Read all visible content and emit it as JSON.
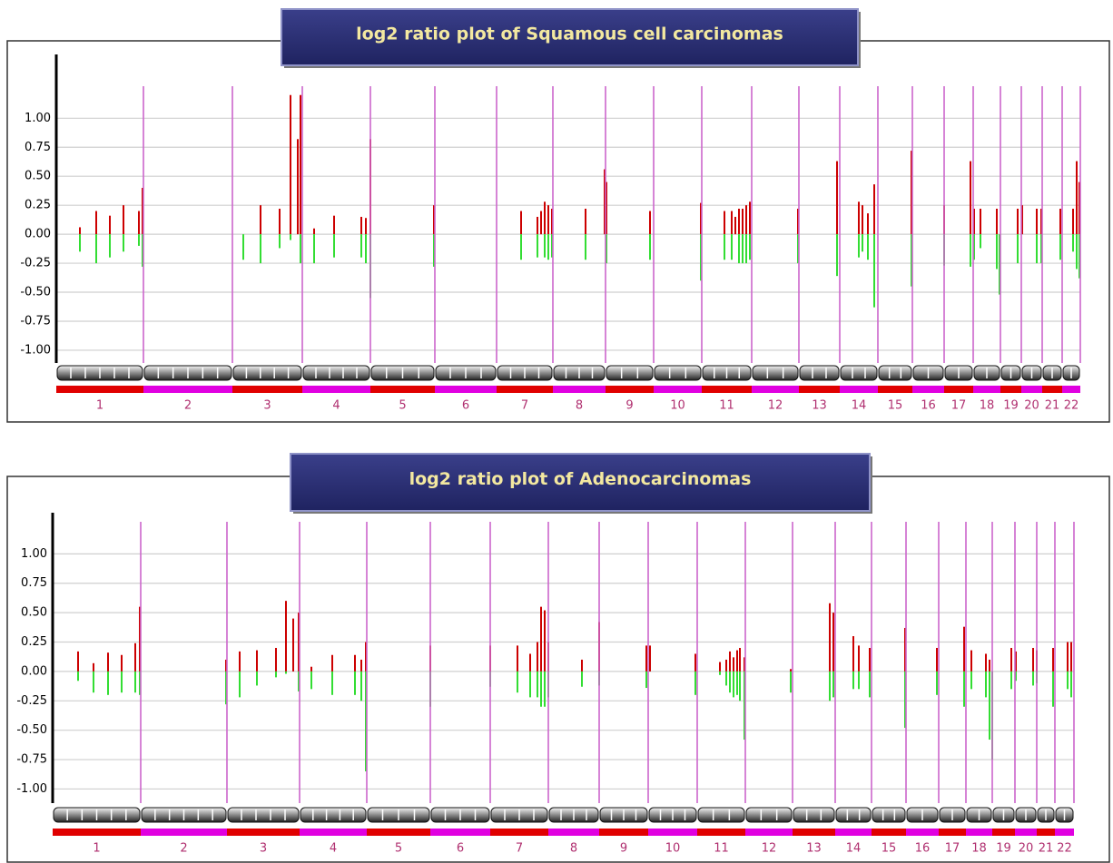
{
  "chart_data": [
    {
      "type": "bar",
      "title": "log2 ratio plot of Squamous cell carcinomas",
      "categories": [
        "1",
        "2",
        "3",
        "4",
        "5",
        "6",
        "7",
        "8",
        "9",
        "10",
        "11",
        "12",
        "13",
        "14",
        "15",
        "16",
        "17",
        "18",
        "19",
        "20",
        "21",
        "22"
      ],
      "chromosome_bounds": [
        62,
        158,
        256,
        333,
        408,
        479,
        547,
        609,
        667,
        720,
        773,
        828,
        880,
        925,
        967,
        1005,
        1040,
        1072,
        1102,
        1125,
        1148,
        1170,
        1190
      ],
      "xlim": [
        62,
        1190
      ],
      "ylim": [
        -1.11,
        1.55
      ],
      "yticks": [
        {
          "value": 1,
          "label": "1.00"
        },
        {
          "value": 0.75,
          "label": "0.75"
        },
        {
          "value": 0.5,
          "label": "0.50"
        },
        {
          "value": 0.25,
          "label": "0.25"
        },
        {
          "value": 0,
          "label": "0.00"
        },
        {
          "value": -0.25,
          "label": "-0.25"
        },
        {
          "value": -0.5,
          "label": "-0.50"
        },
        {
          "value": -0.75,
          "label": "-0.75"
        },
        {
          "value": -1,
          "label": "-1.00"
        }
      ],
      "grid": true,
      "boundary_color": "#cc66cc",
      "band_colors": [
        "#e00000",
        "#e000e0"
      ],
      "series": [
        {
          "color": "#cc0000",
          "x": [
            88,
            106,
            121,
            136,
            153,
            157,
            287,
            308,
            320,
            328,
            331,
            346,
            368,
            398,
            403,
            408,
            478,
            574,
            592,
            596,
            600,
            604,
            608,
            645,
            666,
            668,
            716,
            772,
            798,
            806,
            810,
            814,
            818,
            822,
            826,
            879,
            922,
            946,
            950,
            956,
            963,
            1004,
            1040,
            1069,
            1073,
            1080,
            1098,
            1121,
            1126,
            1142,
            1147,
            1168,
            1182,
            1186,
            1189
          ],
          "values": [
            0.06,
            0.2,
            0.16,
            0.25,
            0.2,
            0.4,
            0.25,
            0.22,
            1.2,
            0.82,
            1.2,
            0.05,
            0.16,
            0.15,
            0.14,
            0.82,
            0.25,
            0.2,
            0.15,
            0.2,
            0.28,
            0.25,
            0.22,
            0.22,
            0.56,
            0.45,
            0.2,
            0.27,
            0.2,
            0.2,
            0.15,
            0.22,
            0.22,
            0.25,
            0.28,
            0.22,
            0.63,
            0.28,
            0.25,
            0.18,
            0.43,
            0.72,
            0.25,
            0.63,
            0.22,
            0.22,
            0.22,
            0.22,
            0.25,
            0.22,
            0.22,
            0.22,
            0.22,
            0.63,
            0.45
          ]
        },
        {
          "color": "#33dd33",
          "x": [
            88,
            106,
            121,
            136,
            153,
            157,
            268,
            287,
            308,
            320,
            331,
            346,
            368,
            398,
            403,
            408,
            478,
            574,
            592,
            600,
            604,
            608,
            645,
            668,
            716,
            772,
            798,
            806,
            814,
            818,
            822,
            826,
            879,
            922,
            946,
            950,
            956,
            963,
            1004,
            1040,
            1069,
            1073,
            1080,
            1098,
            1101,
            1121,
            1142,
            1147,
            1168,
            1182,
            1186,
            1189
          ],
          "values": [
            -0.15,
            -0.25,
            -0.2,
            -0.15,
            -0.1,
            -0.28,
            -0.22,
            -0.25,
            -0.12,
            -0.05,
            -0.25,
            -0.25,
            -0.2,
            -0.2,
            -0.25,
            -0.55,
            -0.28,
            -0.22,
            -0.2,
            -0.2,
            -0.22,
            -0.2,
            -0.22,
            -0.25,
            -0.22,
            -0.4,
            -0.22,
            -0.22,
            -0.25,
            -0.25,
            -0.25,
            -0.22,
            -0.25,
            -0.36,
            -0.2,
            -0.15,
            -0.22,
            -0.63,
            -0.45,
            -0.27,
            -0.28,
            -0.22,
            -0.12,
            -0.3,
            -0.52,
            -0.25,
            -0.25,
            -0.25,
            -0.22,
            -0.15,
            -0.3,
            -0.38
          ]
        }
      ]
    },
    {
      "type": "bar",
      "title": "log2 ratio plot of Adenocarcinomas",
      "categories": [
        "1",
        "2",
        "3",
        "4",
        "5",
        "6",
        "7",
        "8",
        "9",
        "10",
        "11",
        "12",
        "13",
        "14",
        "15",
        "16",
        "17",
        "18",
        "19",
        "20",
        "21",
        "22"
      ],
      "chromosome_bounds": [
        58,
        155,
        250,
        330,
        404,
        474,
        540,
        604,
        660,
        714,
        768,
        821,
        873,
        920,
        960,
        998,
        1034,
        1064,
        1093,
        1118,
        1142,
        1162,
        1183
      ],
      "xlim": [
        58,
        1183
      ],
      "ylim": [
        -1.12,
        1.35
      ],
      "yticks": [
        {
          "value": 1,
          "label": "1.00"
        },
        {
          "value": 0.75,
          "label": "0.75"
        },
        {
          "value": 0.5,
          "label": "0.50"
        },
        {
          "value": 0.25,
          "label": "0.25"
        },
        {
          "value": 0,
          "label": "0.00"
        },
        {
          "value": -0.25,
          "label": "-0.25"
        },
        {
          "value": -0.5,
          "label": "-0.50"
        },
        {
          "value": -0.75,
          "label": "-0.75"
        },
        {
          "value": -1,
          "label": "-1.00"
        }
      ],
      "grid": true,
      "boundary_color": "#cc66cc",
      "band_colors": [
        "#e00000",
        "#e000e0"
      ],
      "series": [
        {
          "color": "#cc0000",
          "x": [
            86,
            103,
            119,
            134,
            149,
            154,
            249,
            264,
            283,
            304,
            315,
            323,
            329,
            343,
            366,
            391,
            398,
            403,
            474,
            540,
            570,
            584,
            592,
            596,
            600,
            604,
            641,
            660,
            712,
            716,
            766,
            793,
            800,
            804,
            808,
            812,
            815,
            820,
            871,
            914,
            918,
            940,
            946,
            958,
            997,
            1032,
            1062,
            1070,
            1086,
            1090,
            1114,
            1119,
            1138,
            1142,
            1160,
            1176,
            1180
          ],
          "values": [
            0.17,
            0.07,
            0.16,
            0.14,
            0.24,
            0.55,
            0.1,
            0.17,
            0.18,
            0.2,
            0.6,
            0.45,
            0.5,
            0.04,
            0.14,
            0.14,
            0.1,
            0.25,
            0.22,
            0.22,
            0.22,
            0.15,
            0.25,
            0.55,
            0.52,
            0.25,
            0.1,
            0.42,
            0.22,
            0.22,
            0.15,
            0.08,
            0.1,
            0.17,
            0.12,
            0.18,
            0.2,
            0.12,
            0.02,
            0.58,
            0.5,
            0.3,
            0.22,
            0.2,
            0.37,
            0.2,
            0.38,
            0.18,
            0.15,
            0.1,
            0.2,
            0.17,
            0.2,
            0.18,
            0.2,
            0.25,
            0.25
          ]
        },
        {
          "color": "#33dd33",
          "x": [
            86,
            103,
            119,
            134,
            149,
            154,
            249,
            264,
            283,
            304,
            315,
            329,
            343,
            366,
            391,
            398,
            403,
            474,
            540,
            570,
            584,
            592,
            596,
            600,
            604,
            641,
            660,
            712,
            766,
            793,
            800,
            804,
            808,
            812,
            815,
            820,
            871,
            914,
            918,
            940,
            946,
            958,
            997,
            1032,
            1062,
            1070,
            1086,
            1090,
            1093,
            1114,
            1119,
            1138,
            1142,
            1160,
            1176,
            1180
          ],
          "values": [
            -0.08,
            -0.18,
            -0.2,
            -0.18,
            -0.18,
            -0.2,
            -0.28,
            -0.22,
            -0.12,
            -0.05,
            -0.02,
            -0.17,
            -0.15,
            -0.2,
            -0.2,
            -0.25,
            -0.85,
            -0.3,
            -0.13,
            -0.18,
            -0.22,
            -0.22,
            -0.3,
            -0.3,
            -0.22,
            -0.13,
            -0.12,
            -0.14,
            -0.2,
            -0.03,
            -0.12,
            -0.18,
            -0.22,
            -0.2,
            -0.25,
            -0.58,
            -0.18,
            -0.25,
            -0.22,
            -0.15,
            -0.15,
            -0.22,
            -0.48,
            -0.2,
            -0.3,
            -0.15,
            -0.22,
            -0.58,
            -0.75,
            -0.15,
            -0.08,
            -0.12,
            -0.1,
            -0.3,
            -0.15,
            -0.22
          ]
        }
      ]
    }
  ]
}
